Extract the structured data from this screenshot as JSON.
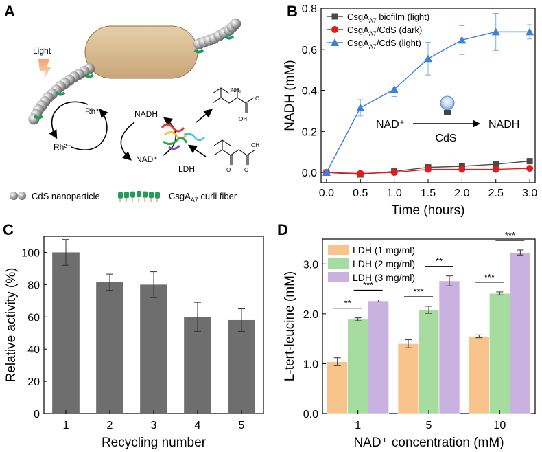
{
  "panel_labels": {
    "a": "A",
    "b": "B",
    "c": "C",
    "d": "D"
  },
  "colors": {
    "cds_gray": "#9e9e9e",
    "curli_green": "#1f9e5a",
    "cell_fill": "#d9bd92",
    "bar_gray": "#6e6e6e",
    "orange": "#f8c48c",
    "green": "#a6dca0",
    "purple": "#c9b2e0",
    "series_black": "#4a4a4a",
    "series_red": "#e41a1c",
    "series_blue": "#3b7fe0"
  },
  "schematic": {
    "light": "Light",
    "rh_plus": "Rh⁺",
    "rh_2plus": "Rh²⁺",
    "nadh": "NADH",
    "nad_plus": "NAD⁺",
    "ldh": "LDH",
    "nh2": "NH₂",
    "oh_top": "OH",
    "oh_bottom": "OH",
    "legend_cds": "CdS nanoparticle",
    "legend_curli": "CsgA",
    "legend_curli_sub": "A7",
    "legend_curli_rest": " curli fiber"
  },
  "chart_data": [
    {
      "panel": "B",
      "type": "line",
      "xlabel": "Time (hours)",
      "ylabel": "NADH (mM)",
      "xlim": [
        0,
        3.0
      ],
      "ylim": [
        -0.05,
        0.8
      ],
      "xticks": [
        "0.0",
        "0.5",
        "1.0",
        "1.5",
        "2.0",
        "2.5",
        "3.0"
      ],
      "xtick_values": [
        0,
        0.5,
        1.0,
        1.5,
        2.0,
        2.5,
        3.0
      ],
      "yticks": [
        "0.0",
        "0.2",
        "0.4",
        "0.6",
        "0.8"
      ],
      "ytick_values": [
        0,
        0.2,
        0.4,
        0.6,
        0.8
      ],
      "x": [
        0,
        0.5,
        1.0,
        1.5,
        2.0,
        2.5,
        3.0
      ],
      "series": [
        {
          "name": "CsgA",
          "sub": "A7",
          "suffix": " biofilm (light)",
          "marker": "square",
          "color": "#4a4a4a",
          "values": [
            0.0,
            -0.01,
            0.005,
            0.025,
            0.03,
            0.04,
            0.055
          ],
          "errors": [
            0.005,
            0.005,
            0.005,
            0.005,
            0.005,
            0.005,
            0.005
          ]
        },
        {
          "name": "CsgA",
          "sub": "A7",
          "suffix": "/CdS (dark)",
          "marker": "circle",
          "color": "#e41a1c",
          "values": [
            0.0,
            -0.005,
            0.0,
            0.015,
            0.015,
            0.015,
            0.02
          ],
          "errors": [
            0.005,
            0.005,
            0.005,
            0.005,
            0.005,
            0.005,
            0.005
          ]
        },
        {
          "name": "CsgA",
          "sub": "A7",
          "suffix": "/CdS (light)",
          "marker": "triangle",
          "color": "#3b7fe0",
          "values": [
            0.0,
            0.315,
            0.405,
            0.555,
            0.645,
            0.685,
            0.685
          ],
          "errors": [
            0.01,
            0.04,
            0.035,
            0.08,
            0.07,
            0.09,
            0.035
          ]
        }
      ],
      "annotation": {
        "left": "NAD⁺",
        "arrow_label": "CdS",
        "right": "NADH"
      }
    },
    {
      "panel": "C",
      "type": "bar",
      "xlabel": "Recycling number",
      "ylabel": "Relative activity (%)",
      "categories": [
        "1",
        "2",
        "3",
        "4",
        "5"
      ],
      "values": [
        100,
        81.5,
        80,
        60,
        58
      ],
      "errors": [
        8,
        5,
        8,
        9,
        7
      ],
      "ylim": [
        0,
        110
      ],
      "yticks": [
        "0",
        "20",
        "40",
        "60",
        "80",
        "100"
      ],
      "ytick_values": [
        0,
        20,
        40,
        60,
        80,
        100
      ]
    },
    {
      "panel": "D",
      "type": "bar",
      "xlabel": "NAD⁺ concentration (mM)",
      "ylabel": "L-tert-leucine (mM)",
      "categories": [
        "1",
        "5",
        "10"
      ],
      "ylim": [
        0,
        3.5
      ],
      "yticks": [
        "0.0",
        "1.0",
        "2.0",
        "3.0"
      ],
      "ytick_values": [
        0,
        1.0,
        2.0,
        3.0
      ],
      "series": [
        {
          "name": "LDH (1 mg/ml)",
          "color": "#f8c48c",
          "values": [
            1.04,
            1.4,
            1.55
          ],
          "errors": [
            0.08,
            0.08,
            0.03
          ]
        },
        {
          "name": "LDH (2 mg/ml)",
          "color": "#a6dca0",
          "values": [
            1.89,
            2.08,
            2.41
          ],
          "errors": [
            0.03,
            0.07,
            0.03
          ]
        },
        {
          "name": "LDH (3 mg/ml)",
          "color": "#c9b2e0",
          "values": [
            2.26,
            2.66,
            3.23
          ],
          "errors": [
            0.02,
            0.1,
            0.05
          ]
        }
      ],
      "significance": [
        {
          "category": 0,
          "pair": [
            0,
            1
          ],
          "label": "**"
        },
        {
          "category": 0,
          "pair": [
            1,
            2
          ],
          "label": "***"
        },
        {
          "category": 1,
          "pair": [
            0,
            1
          ],
          "label": "***"
        },
        {
          "category": 1,
          "pair": [
            1,
            2
          ],
          "label": "**"
        },
        {
          "category": 2,
          "pair": [
            0,
            1
          ],
          "label": "***"
        },
        {
          "category": 2,
          "pair": [
            1,
            2
          ],
          "label": "***"
        }
      ]
    }
  ]
}
